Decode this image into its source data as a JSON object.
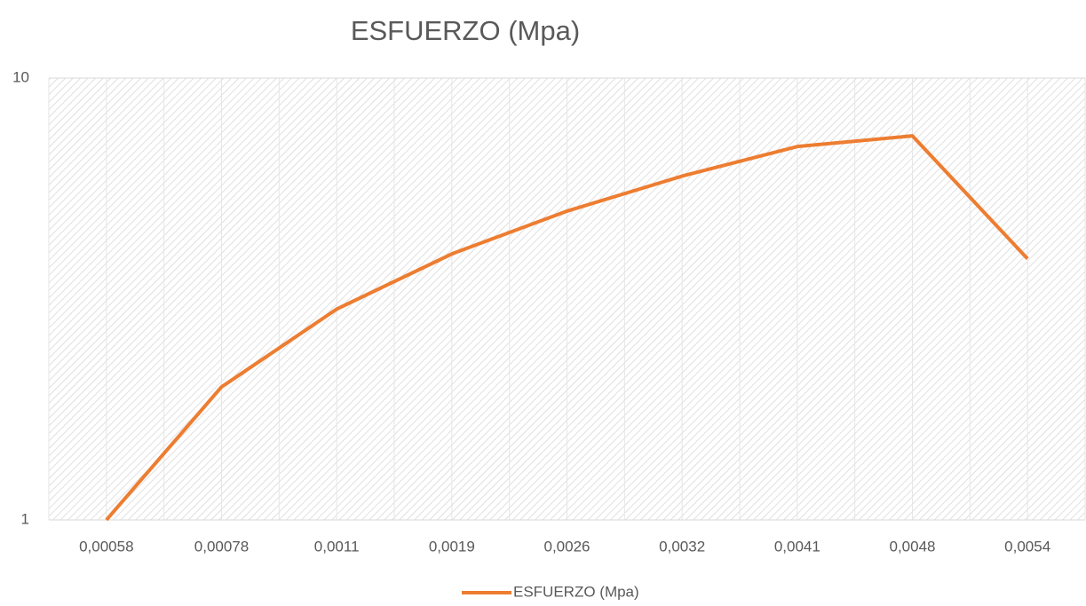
{
  "chart_data": {
    "type": "line",
    "title": "ESFUERZO (Mpa)",
    "categories": [
      "0,00058",
      "0,00078",
      "0,0011",
      "0,0019",
      "0,0026",
      "0,0032",
      "0,0041",
      "0,0048",
      "0,0054"
    ],
    "series": [
      {
        "name": "ESFUERZO (Mpa)",
        "color": "#ed7d31",
        "values": [
          1.0,
          2.0,
          3.0,
          4.0,
          5.0,
          6.0,
          7.0,
          7.4,
          3.9
        ]
      }
    ],
    "ylim": [
      1,
      10
    ],
    "yticks": [
      1,
      10
    ],
    "log_scale": true,
    "grid": true,
    "legend": "bottom"
  }
}
